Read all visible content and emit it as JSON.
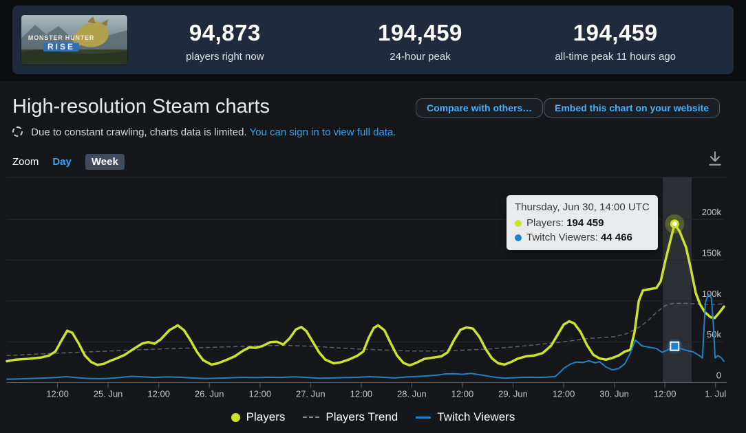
{
  "header": {
    "game_title": "MONSTER HUNTER RISE",
    "game_title_line1": "MONSTER HUNTER",
    "game_title_line2": "RISE",
    "stats": [
      {
        "value": "94,873",
        "label": "players right now"
      },
      {
        "value": "194,459",
        "label": "24-hour peak"
      },
      {
        "value": "194,459",
        "label": "all-time peak 11 hours ago"
      }
    ]
  },
  "page": {
    "title": "High-resolution Steam charts",
    "buttons": [
      {
        "label": "Compare with others…"
      },
      {
        "label": "Embed this chart on your website"
      }
    ],
    "notice": {
      "text": "Due to constant crawling, charts data is limited.",
      "link": "You can sign in to view full data."
    },
    "zoom": {
      "label": "Zoom",
      "day": "Day",
      "week": "Week",
      "selected": "Week"
    }
  },
  "tooltip": {
    "title": "Thursday, Jun 30, 14:00 UTC",
    "rows": [
      {
        "label": "Players:",
        "value": "194 459",
        "color": "#cde22d"
      },
      {
        "label": "Twitch Viewers:",
        "value": "44 466",
        "color": "#1e82c8"
      }
    ]
  },
  "legend": [
    {
      "label": "Players",
      "marker": "circle",
      "color": "#cde22d"
    },
    {
      "label": "Players Trend",
      "marker": "dash",
      "color": "#8a8d92"
    },
    {
      "label": "Twitch Viewers",
      "marker": "line",
      "color": "#1e82c8"
    }
  ],
  "colors": {
    "players": "#cde22d",
    "trend": "#71757c",
    "twitch": "#1e82c8",
    "grid": "#26292f",
    "axis": "#55585e",
    "band": "rgba(200,210,225,0.13)"
  },
  "chart_data": {
    "type": "line",
    "title": "High-resolution Steam charts (Monster Hunter Rise)",
    "x_unit": "hours since Jun 24 00:00 UTC",
    "x_range": [
      0,
      170
    ],
    "ylim": [
      0,
      251500
    ],
    "grid": true,
    "legend_position": "bottom",
    "y_ticks": [
      {
        "v": 200000,
        "label": "200k"
      },
      {
        "v": 150000,
        "label": "150k"
      },
      {
        "v": 100000,
        "label": "100k"
      },
      {
        "v": 50000,
        "label": "50k"
      },
      {
        "v": 0,
        "label": "0"
      }
    ],
    "x_ticks": [
      {
        "t": 12,
        "label": "12:00"
      },
      {
        "t": 24,
        "label": "25. Jun"
      },
      {
        "t": 36,
        "label": "12:00"
      },
      {
        "t": 48,
        "label": "26. Jun"
      },
      {
        "t": 60,
        "label": "12:00"
      },
      {
        "t": 72,
        "label": "27. Jun"
      },
      {
        "t": 84,
        "label": "12:00"
      },
      {
        "t": 96,
        "label": "28. Jun"
      },
      {
        "t": 108,
        "label": "12:00"
      },
      {
        "t": 120,
        "label": "29. Jun"
      },
      {
        "t": 132,
        "label": "12:00"
      },
      {
        "t": 144,
        "label": "30. Jun"
      },
      {
        "t": 156,
        "label": "12:00"
      },
      {
        "t": 168,
        "label": "1. Jul"
      }
    ],
    "highlight_band": {
      "t_start": 155.5,
      "t_end": 162.35
    },
    "series": [
      {
        "name": "Players Trend",
        "color": "#71757c",
        "width": 1.5,
        "dash": "5,5",
        "opacity": 0.8,
        "points": [
          [
            0,
            33000
          ],
          [
            12,
            36000
          ],
          [
            24,
            38500
          ],
          [
            36,
            41000
          ],
          [
            48,
            43000
          ],
          [
            60,
            45000
          ],
          [
            66,
            45500
          ],
          [
            72,
            44500
          ],
          [
            80,
            42000
          ],
          [
            88,
            40000
          ],
          [
            96,
            38500
          ],
          [
            102,
            38500
          ],
          [
            108,
            39500
          ],
          [
            114,
            41000
          ],
          [
            120,
            43500
          ],
          [
            126,
            46500
          ],
          [
            132,
            50000
          ],
          [
            138,
            54000
          ],
          [
            144,
            56000
          ],
          [
            147,
            60000
          ],
          [
            150,
            68000
          ],
          [
            152,
            76000
          ],
          [
            154,
            86000
          ],
          [
            156,
            94000
          ],
          [
            158,
            97000
          ],
          [
            161,
            97000
          ],
          [
            164,
            96000
          ],
          [
            167,
            95500
          ],
          [
            170,
            96500
          ]
        ]
      },
      {
        "name": "Players",
        "color": "#cde22d",
        "width": 3.5,
        "dash": null,
        "opacity": 1,
        "points": [
          [
            0,
            26000
          ],
          [
            2,
            28000
          ],
          [
            5,
            29000
          ],
          [
            8,
            30500
          ],
          [
            10,
            33000
          ],
          [
            11.5,
            38000
          ],
          [
            13,
            52000
          ],
          [
            14.3,
            63500
          ],
          [
            15.5,
            61000
          ],
          [
            17,
            48000
          ],
          [
            18.5,
            33000
          ],
          [
            20,
            25000
          ],
          [
            21.5,
            21500
          ],
          [
            23,
            23000
          ],
          [
            24.5,
            26500
          ],
          [
            26,
            29500
          ],
          [
            28,
            34000
          ],
          [
            30,
            41000
          ],
          [
            32,
            47500
          ],
          [
            33.5,
            49500
          ],
          [
            35,
            47500
          ],
          [
            36.5,
            53000
          ],
          [
            38.5,
            64000
          ],
          [
            40.5,
            70000
          ],
          [
            42,
            64000
          ],
          [
            43.5,
            52000
          ],
          [
            45,
            38000
          ],
          [
            46.5,
            27500
          ],
          [
            48.5,
            22000
          ],
          [
            50,
            23500
          ],
          [
            52,
            27500
          ],
          [
            54,
            32000
          ],
          [
            56,
            39000
          ],
          [
            57.5,
            43000
          ],
          [
            59,
            42500
          ],
          [
            60.5,
            44500
          ],
          [
            62.5,
            49500
          ],
          [
            64,
            50000
          ],
          [
            65.5,
            46500
          ],
          [
            67,
            54000
          ],
          [
            68.5,
            65000
          ],
          [
            69.8,
            68000
          ],
          [
            71,
            63000
          ],
          [
            72.5,
            50000
          ],
          [
            74,
            37000
          ],
          [
            75.5,
            28000
          ],
          [
            77.5,
            23500
          ],
          [
            79,
            24500
          ],
          [
            81,
            28000
          ],
          [
            83,
            32500
          ],
          [
            84.5,
            38000
          ],
          [
            85.8,
            55000
          ],
          [
            87,
            67000
          ],
          [
            88,
            70000
          ],
          [
            89.5,
            64000
          ],
          [
            91,
            48000
          ],
          [
            92.5,
            33000
          ],
          [
            94,
            24000
          ],
          [
            95.5,
            21000
          ],
          [
            97,
            24000
          ],
          [
            99,
            29000
          ],
          [
            101,
            30500
          ],
          [
            103,
            32000
          ],
          [
            104.5,
            37000
          ],
          [
            106,
            52000
          ],
          [
            107.5,
            64500
          ],
          [
            109,
            67500
          ],
          [
            110.5,
            66000
          ],
          [
            112,
            56000
          ],
          [
            113.5,
            41000
          ],
          [
            115,
            29500
          ],
          [
            116.5,
            23500
          ],
          [
            118,
            22000
          ],
          [
            119.5,
            25000
          ],
          [
            121,
            29000
          ],
          [
            123,
            32000
          ],
          [
            125,
            33000
          ],
          [
            127,
            36000
          ],
          [
            129,
            45000
          ],
          [
            130.5,
            58000
          ],
          [
            132,
            71000
          ],
          [
            133.3,
            75000
          ],
          [
            134.5,
            72500
          ],
          [
            136,
            62000
          ],
          [
            137.5,
            46000
          ],
          [
            139,
            34000
          ],
          [
            140.5,
            29500
          ],
          [
            142,
            28000
          ],
          [
            143.5,
            30000
          ],
          [
            145,
            33000
          ],
          [
            146.5,
            38000
          ],
          [
            147.8,
            40000
          ],
          [
            148.8,
            62000
          ],
          [
            149.8,
            100000
          ],
          [
            150.8,
            113000
          ],
          [
            152.5,
            114500
          ],
          [
            154,
            116000
          ],
          [
            155,
            124000
          ],
          [
            156,
            147000
          ],
          [
            157.2,
            172000
          ],
          [
            158.3,
            194459
          ],
          [
            159.5,
            185000
          ],
          [
            161,
            166000
          ],
          [
            162.2,
            138000
          ],
          [
            163.3,
            110000
          ],
          [
            164.3,
            96000
          ],
          [
            165.5,
            86000
          ],
          [
            166.8,
            80000
          ],
          [
            167.8,
            79000
          ],
          [
            168.8,
            85000
          ],
          [
            170,
            93000
          ]
        ]
      },
      {
        "name": "Twitch Viewers",
        "color": "#1e82c8",
        "width": 2,
        "dash": null,
        "opacity": 1,
        "points": [
          [
            0,
            4000
          ],
          [
            3,
            4500
          ],
          [
            6,
            5000
          ],
          [
            9,
            5500
          ],
          [
            12,
            6200
          ],
          [
            14,
            7200
          ],
          [
            16,
            6200
          ],
          [
            19,
            5000
          ],
          [
            22,
            4600
          ],
          [
            24,
            5000
          ],
          [
            27,
            6200
          ],
          [
            29.5,
            7600
          ],
          [
            32,
            7000
          ],
          [
            35,
            6200
          ],
          [
            38,
            6800
          ],
          [
            41,
            6400
          ],
          [
            44,
            5600
          ],
          [
            47,
            4800
          ],
          [
            50,
            5200
          ],
          [
            53,
            5800
          ],
          [
            56,
            6300
          ],
          [
            59,
            6000
          ],
          [
            62,
            6400
          ],
          [
            65,
            6200
          ],
          [
            68,
            7000
          ],
          [
            71,
            6200
          ],
          [
            74,
            5300
          ],
          [
            77,
            5600
          ],
          [
            80,
            6000
          ],
          [
            83,
            6300
          ],
          [
            86,
            7200
          ],
          [
            89,
            6400
          ],
          [
            92,
            5600
          ],
          [
            95,
            6800
          ],
          [
            98,
            7600
          ],
          [
            100,
            8200
          ],
          [
            102,
            9000
          ],
          [
            104,
            10500
          ],
          [
            106,
            10800
          ],
          [
            108,
            10000
          ],
          [
            110,
            11200
          ],
          [
            112,
            9600
          ],
          [
            114,
            7800
          ],
          [
            116,
            6200
          ],
          [
            118,
            5400
          ],
          [
            120,
            5800
          ],
          [
            122,
            6200
          ],
          [
            124,
            6400
          ],
          [
            126,
            6200
          ],
          [
            128,
            6600
          ],
          [
            130,
            7400
          ],
          [
            131,
            12000
          ],
          [
            132.2,
            18000
          ],
          [
            133.8,
            23000
          ],
          [
            135,
            25000
          ],
          [
            136.5,
            24500
          ],
          [
            138,
            26500
          ],
          [
            139.5,
            24000
          ],
          [
            140.5,
            25500
          ],
          [
            142,
            19000
          ],
          [
            143.5,
            15500
          ],
          [
            145,
            17000
          ],
          [
            146.5,
            23000
          ],
          [
            147.7,
            35000
          ],
          [
            149,
            52000
          ],
          [
            150.5,
            45000
          ],
          [
            152,
            43500
          ],
          [
            154,
            41500
          ],
          [
            155.3,
            37000
          ],
          [
            156.5,
            39500
          ],
          [
            158.1,
            44466
          ],
          [
            159.5,
            42000
          ],
          [
            161,
            39500
          ],
          [
            162.7,
            37500
          ],
          [
            164.3,
            32500
          ],
          [
            164.9,
            30000
          ],
          [
            165.6,
            98000
          ],
          [
            166.3,
            108000
          ],
          [
            167,
            104000
          ],
          [
            167.5,
            70000
          ],
          [
            167.9,
            30000
          ],
          [
            168.6,
            33000
          ],
          [
            169.3,
            30500
          ],
          [
            170,
            26000
          ]
        ]
      }
    ],
    "markers": [
      {
        "series": "Players",
        "t": 158.3,
        "v": 194459,
        "shape": "circle"
      },
      {
        "series": "Twitch Viewers",
        "t": 158.3,
        "v": 44466,
        "shape": "square"
      }
    ]
  }
}
